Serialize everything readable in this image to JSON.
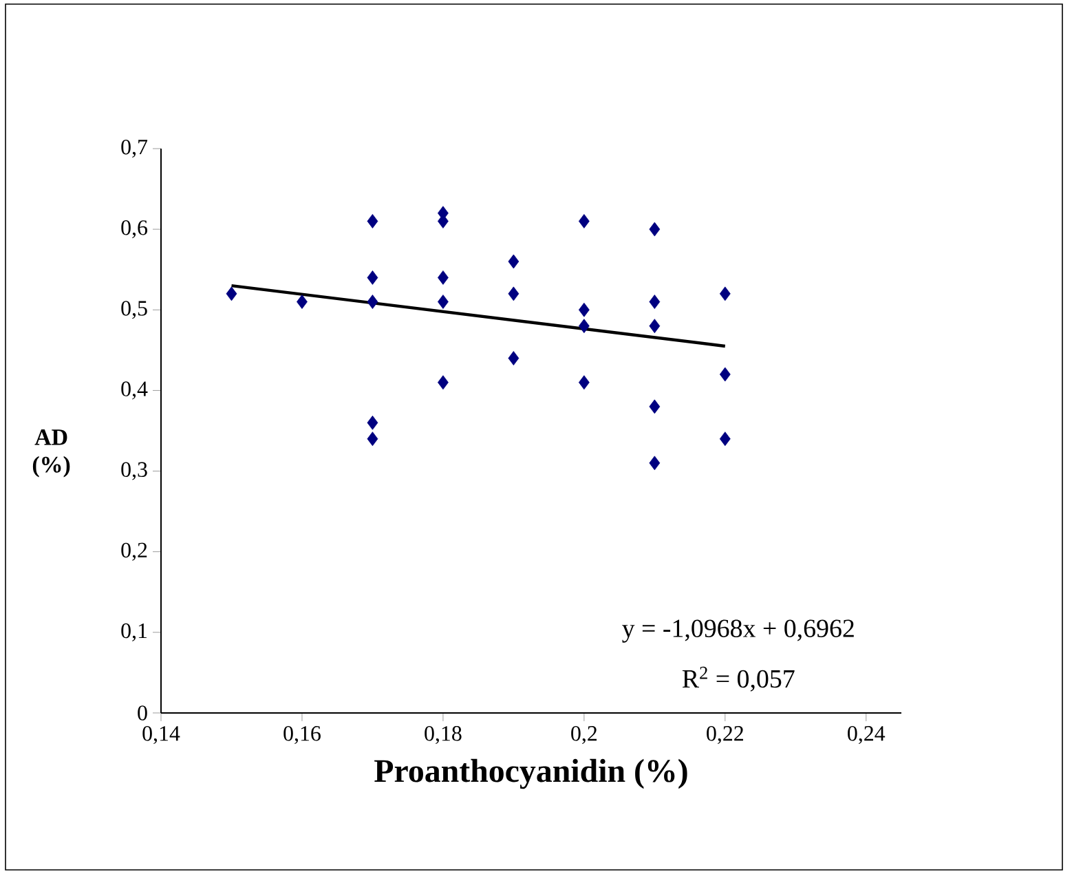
{
  "chart_data": {
    "type": "scatter",
    "xlabel": "Proanthocyanidin (%)",
    "ylabel": "AD (%)",
    "xlim": [
      0.14,
      0.245
    ],
    "ylim": [
      0,
      0.7
    ],
    "xticks": [
      {
        "value": 0.14,
        "label": "0,14"
      },
      {
        "value": 0.16,
        "label": "0,16"
      },
      {
        "value": 0.18,
        "label": "0,18"
      },
      {
        "value": 0.2,
        "label": "0,2"
      },
      {
        "value": 0.22,
        "label": "0,22"
      },
      {
        "value": 0.24,
        "label": "0,24"
      }
    ],
    "yticks": [
      0,
      {
        "value": 0.1,
        "label": "0,1"
      },
      {
        "value": 0.2,
        "label": "0,2"
      },
      {
        "value": 0.3,
        "label": "0,3"
      },
      {
        "value": 0.4,
        "label": "0,4"
      },
      {
        "value": 0.5,
        "label": "0,5"
      },
      {
        "value": 0.6,
        "label": "0,6"
      },
      {
        "value": 0.7,
        "label": "0,7"
      }
    ],
    "grid": false,
    "marker": "diamond",
    "series": [
      {
        "color": "#000080",
        "x": [
          0.15,
          0.16,
          0.17,
          0.17,
          0.17,
          0.17,
          0.17,
          0.18,
          0.18,
          0.18,
          0.18,
          0.18,
          0.19,
          0.19,
          0.19,
          0.2,
          0.2,
          0.2,
          0.2,
          0.21,
          0.21,
          0.21,
          0.21,
          0.21,
          0.22,
          0.22,
          0.22
        ],
        "values": [
          0.52,
          0.51,
          0.61,
          0.54,
          0.51,
          0.36,
          0.34,
          0.62,
          0.61,
          0.54,
          0.51,
          0.41,
          0.56,
          0.52,
          0.44,
          0.61,
          0.5,
          0.48,
          0.41,
          0.6,
          0.51,
          0.48,
          0.38,
          0.31,
          0.52,
          0.42,
          0.34
        ]
      },
      {
        "type": "line",
        "color": "#000000",
        "marker": "none",
        "x": [
          0.15,
          0.22
        ],
        "values": [
          0.53,
          0.455
        ]
      }
    ],
    "annotations": [
      "y = -1,0968x + 0,6962",
      "R$^{2}$ = 0,057"
    ]
  }
}
